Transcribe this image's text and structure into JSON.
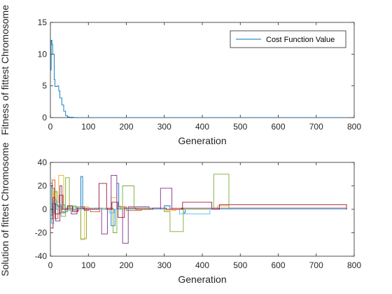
{
  "colors": {
    "axis": "#262626",
    "background": "#ffffff",
    "series": [
      "#0072BD",
      "#D95319",
      "#EDB120",
      "#7E2F8E",
      "#77AC30",
      "#4DBEEE",
      "#A2142F"
    ]
  },
  "chart_data": [
    {
      "type": "line",
      "xlabel": "Generation",
      "ylabel": "Fitness of fittest Chromosome",
      "xlim": [
        0,
        800
      ],
      "ylim": [
        0,
        15
      ],
      "xticks": [
        0,
        100,
        200,
        300,
        400,
        500,
        600,
        700,
        800
      ],
      "yticks": [
        0,
        5,
        10,
        15
      ],
      "grid": false,
      "legend": {
        "placement": "top-right",
        "entries": [
          "Cost Function Value"
        ]
      },
      "series": [
        {
          "name": "Cost Function Value",
          "step": true,
          "x": [
            0,
            2,
            4,
            6,
            10,
            12,
            18,
            22,
            25,
            30,
            35,
            40,
            45,
            50,
            60,
            70,
            80,
            780
          ],
          "y": [
            7.5,
            12.2,
            11.5,
            10.0,
            6.0,
            4.9,
            5.0,
            4.2,
            3.1,
            2.0,
            1.0,
            0.3,
            0.1,
            0.05,
            0.02,
            0.01,
            0.0,
            0.0
          ]
        }
      ]
    },
    {
      "type": "line",
      "xlabel": "Generation",
      "ylabel": "Solution of fittest Chromosome",
      "xlim": [
        0,
        800
      ],
      "ylim": [
        -40,
        40
      ],
      "xticks": [
        0,
        100,
        200,
        300,
        400,
        500,
        600,
        700,
        800
      ],
      "yticks": [
        -40,
        -20,
        0,
        20,
        40
      ],
      "grid": false,
      "legend": null,
      "series": [
        {
          "step": true,
          "x": [
            0,
            5,
            10,
            20,
            25,
            40,
            60,
            80,
            85,
            95,
            110,
            150,
            160,
            170,
            175,
            180,
            195,
            230,
            290,
            300,
            315,
            350,
            355,
            425,
            430,
            445,
            475,
            780
          ],
          "y": [
            22,
            18,
            4,
            2,
            -3,
            1,
            0,
            28,
            0,
            1,
            0,
            1,
            -14,
            0,
            22,
            2,
            0,
            1,
            0,
            3,
            0,
            -3,
            0,
            0,
            1,
            0,
            0,
            0
          ]
        },
        {
          "step": true,
          "x": [
            0,
            5,
            12,
            20,
            30,
            45,
            60,
            75,
            90,
            105,
            130,
            150,
            165,
            185,
            200,
            240,
            290,
            320,
            350,
            430,
            450,
            780
          ],
          "y": [
            -5,
            25,
            -8,
            3,
            -2,
            2,
            -1,
            0,
            1,
            -2,
            0,
            1,
            0,
            2,
            -1,
            0,
            0,
            1,
            0,
            0,
            0,
            0
          ]
        },
        {
          "step": true,
          "x": [
            0,
            8,
            15,
            22,
            35,
            48,
            65,
            80,
            90,
            100,
            140,
            160,
            175,
            185,
            210,
            250,
            300,
            330,
            360,
            440,
            470,
            780
          ],
          "y": [
            10,
            16,
            6,
            29,
            0,
            2,
            1,
            -26,
            2,
            0,
            0,
            10,
            3,
            0,
            1,
            0,
            -1,
            0,
            0,
            3,
            1,
            0
          ]
        },
        {
          "step": true,
          "x": [
            0,
            6,
            14,
            25,
            30,
            55,
            70,
            90,
            100,
            115,
            135,
            150,
            160,
            175,
            190,
            205,
            260,
            290,
            320,
            345,
            780
          ],
          "y": [
            -8,
            5,
            -10,
            20,
            0,
            -4,
            2,
            -1,
            0,
            1,
            -21,
            0,
            29,
            1,
            -29,
            2,
            0,
            18,
            0,
            1,
            0
          ]
        },
        {
          "step": true,
          "x": [
            0,
            4,
            10,
            18,
            28,
            40,
            50,
            60,
            80,
            95,
            120,
            145,
            165,
            175,
            190,
            220,
            260,
            300,
            315,
            350,
            425,
            430,
            470,
            780
          ],
          "y": [
            5,
            -3,
            15,
            3,
            -6,
            27,
            0,
            2,
            -25,
            0,
            1,
            0,
            -20,
            0,
            20,
            1,
            0,
            -2,
            -19,
            0,
            0,
            30,
            0,
            0
          ]
        },
        {
          "step": true,
          "x": [
            0,
            3,
            9,
            16,
            26,
            38,
            52,
            68,
            85,
            105,
            125,
            155,
            168,
            180,
            200,
            240,
            280,
            310,
            340,
            420,
            480,
            780
          ],
          "y": [
            20,
            -12,
            8,
            0,
            4,
            -1,
            3,
            0,
            0,
            1,
            0,
            -3,
            0,
            1,
            0,
            0,
            0,
            0,
            -4,
            0,
            0,
            0
          ]
        },
        {
          "step": true,
          "x": [
            0,
            7,
            12,
            24,
            33,
            45,
            58,
            72,
            88,
            100,
            128,
            148,
            162,
            178,
            195,
            225,
            270,
            305,
            348,
            425,
            445,
            780
          ],
          "y": [
            -16,
            10,
            -4,
            12,
            0,
            3,
            -2,
            1,
            0,
            0,
            22,
            0,
            6,
            -7,
            1,
            0,
            1,
            0,
            6,
            0,
            4,
            0
          ]
        }
      ]
    }
  ]
}
